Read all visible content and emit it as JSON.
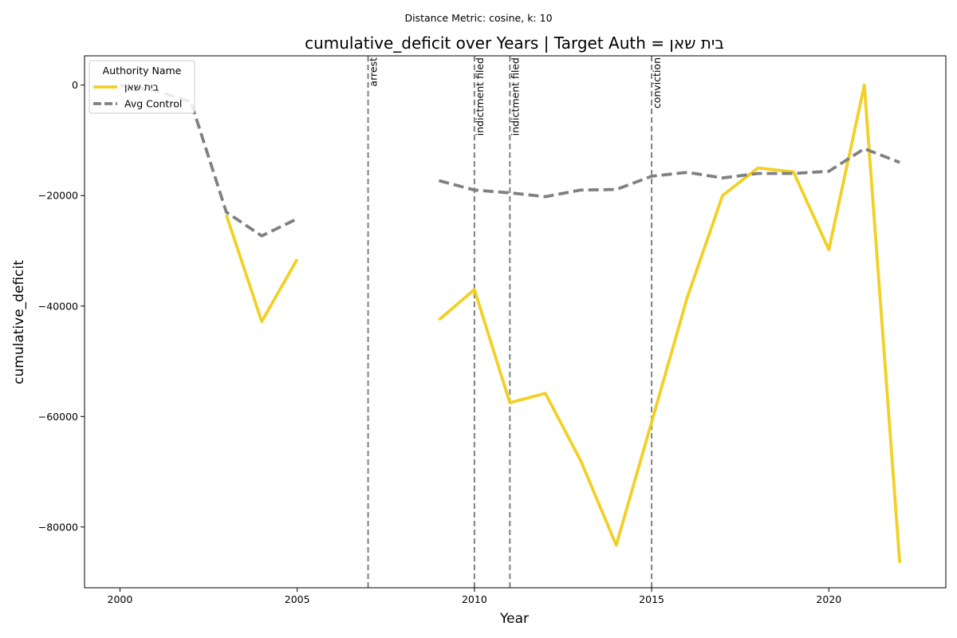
{
  "chart_data": {
    "type": "line",
    "suptitle": "Distance Metric: cosine, k: 10",
    "title": "cumulative_deficit over Years | Target Auth = בית שאן",
    "xlabel": "Year",
    "ylabel": "cumulative_deficit",
    "xlim": [
      1999,
      2023.3
    ],
    "ylim": [
      -91000,
      5300
    ],
    "xticks": [
      2000,
      2005,
      2010,
      2015,
      2020
    ],
    "xtick_labels": [
      "2000",
      "2005",
      "2010",
      "2015",
      "2020"
    ],
    "yticks": [
      0,
      -20000,
      -40000,
      -60000,
      -80000
    ],
    "ytick_labels": [
      "0",
      "−20000",
      "−40000",
      "−60000",
      "−80000"
    ],
    "grid": false,
    "legend": {
      "title": "Authority Name",
      "placement": "top-left"
    },
    "series": [
      {
        "name": "בית שאן",
        "color": "#F2D024",
        "style": "solid",
        "points": [
          [
            2003,
            -23500
          ],
          [
            2004,
            -42800
          ],
          [
            2005,
            -31500
          ],
          [
            2009,
            -42500
          ],
          [
            2010,
            -37000
          ],
          [
            2011,
            -57500
          ],
          [
            2012,
            -55800
          ],
          [
            2013,
            -68000
          ],
          [
            2014,
            -83300
          ],
          [
            2015,
            -61000
          ],
          [
            2016,
            -38500
          ],
          [
            2017,
            -20000
          ],
          [
            2018,
            -15000
          ],
          [
            2019,
            -15700
          ],
          [
            2020,
            -29800
          ],
          [
            2021,
            0
          ],
          [
            2022,
            -86500
          ]
        ]
      },
      {
        "name": "Avg Control",
        "color": "#808080",
        "style": "dashed",
        "points": [
          [
            2000,
            0
          ],
          [
            2001,
            -1000
          ],
          [
            2002,
            -3000
          ],
          [
            2003,
            -23000
          ],
          [
            2004,
            -27300
          ],
          [
            2005,
            -24200
          ],
          [
            2009,
            -17300
          ],
          [
            2010,
            -19000
          ],
          [
            2011,
            -19500
          ],
          [
            2012,
            -20200
          ],
          [
            2013,
            -19000
          ],
          [
            2014,
            -18900
          ],
          [
            2015,
            -16500
          ],
          [
            2016,
            -15800
          ],
          [
            2017,
            -16800
          ],
          [
            2018,
            -16000
          ],
          [
            2019,
            -16000
          ],
          [
            2020,
            -15600
          ],
          [
            2021,
            -11500
          ],
          [
            2022,
            -14000
          ]
        ]
      }
    ],
    "events": [
      {
        "x": 2007,
        "label": "arrest"
      },
      {
        "x": 2010,
        "label": "indictment filed"
      },
      {
        "x": 2011,
        "label": "indictment filed"
      },
      {
        "x": 2015,
        "label": "conviction"
      }
    ]
  }
}
